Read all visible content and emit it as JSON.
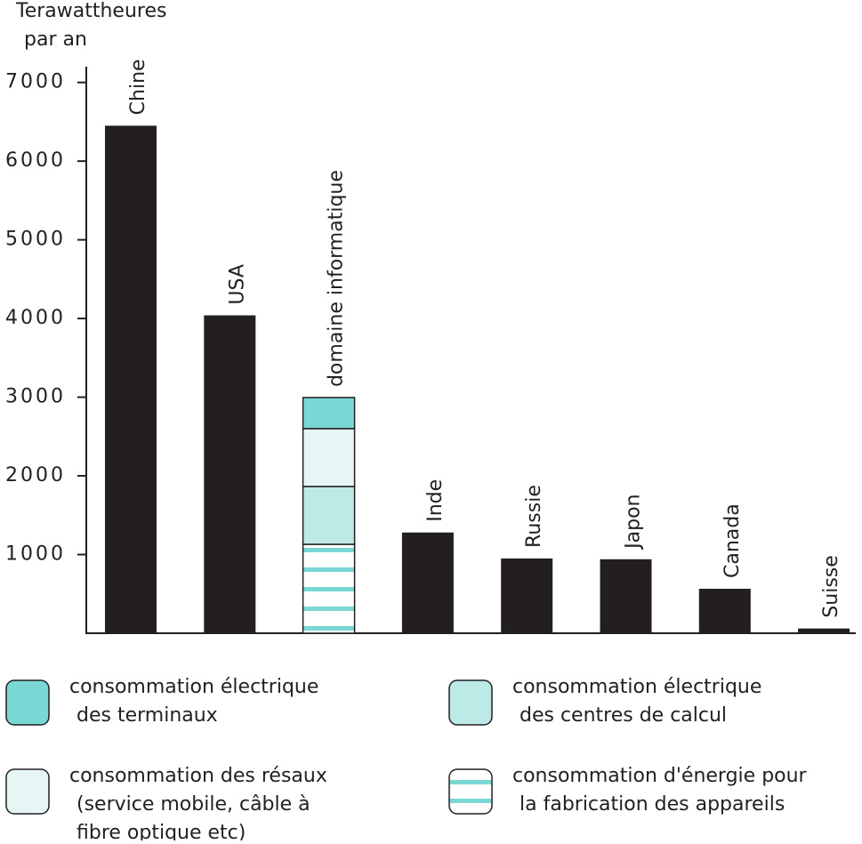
{
  "chart_data": {
    "type": "stacked_bar",
    "y_label": [
      "Terawattheures",
      "par an"
    ],
    "categories": [
      "Chine",
      "USA",
      "domaine informatique",
      "Inde",
      "Russie",
      "Japon",
      "Canada",
      "Suisse"
    ],
    "ylim": [
      0,
      7200
    ],
    "yticks": [
      1000,
      2000,
      3000,
      4000,
      5000,
      6000,
      7000
    ],
    "series": [
      {
        "color": "#231f20",
        "values": [
          6450,
          4040,
          null,
          1280,
          950,
          940,
          565,
          60
        ]
      },
      {
        "name": [
          "consommation d'énergie pour",
          "la fabrication des appareils"
        ],
        "color": "#79d8d3",
        "pattern": "stripes",
        "values": [
          null,
          null,
          1130,
          null,
          null,
          null,
          null,
          null
        ]
      },
      {
        "name": [
          "consommation électrique",
          "des centres de calcul"
        ],
        "color": "#bdeae6",
        "values": [
          null,
          null,
          735,
          null,
          null,
          null,
          null,
          null
        ]
      },
      {
        "name": [
          "consommation des résaux",
          "(service mobile, câble à",
          "fibre optique etc)"
        ],
        "color": "#e5f6f5",
        "values": [
          null,
          null,
          735,
          null,
          null,
          null,
          null,
          null
        ]
      },
      {
        "name": [
          "consommation électrique",
          "des terminaux"
        ],
        "color": "#79d8d3",
        "values": [
          null,
          null,
          395,
          null,
          null,
          null,
          null,
          null
        ]
      }
    ]
  }
}
